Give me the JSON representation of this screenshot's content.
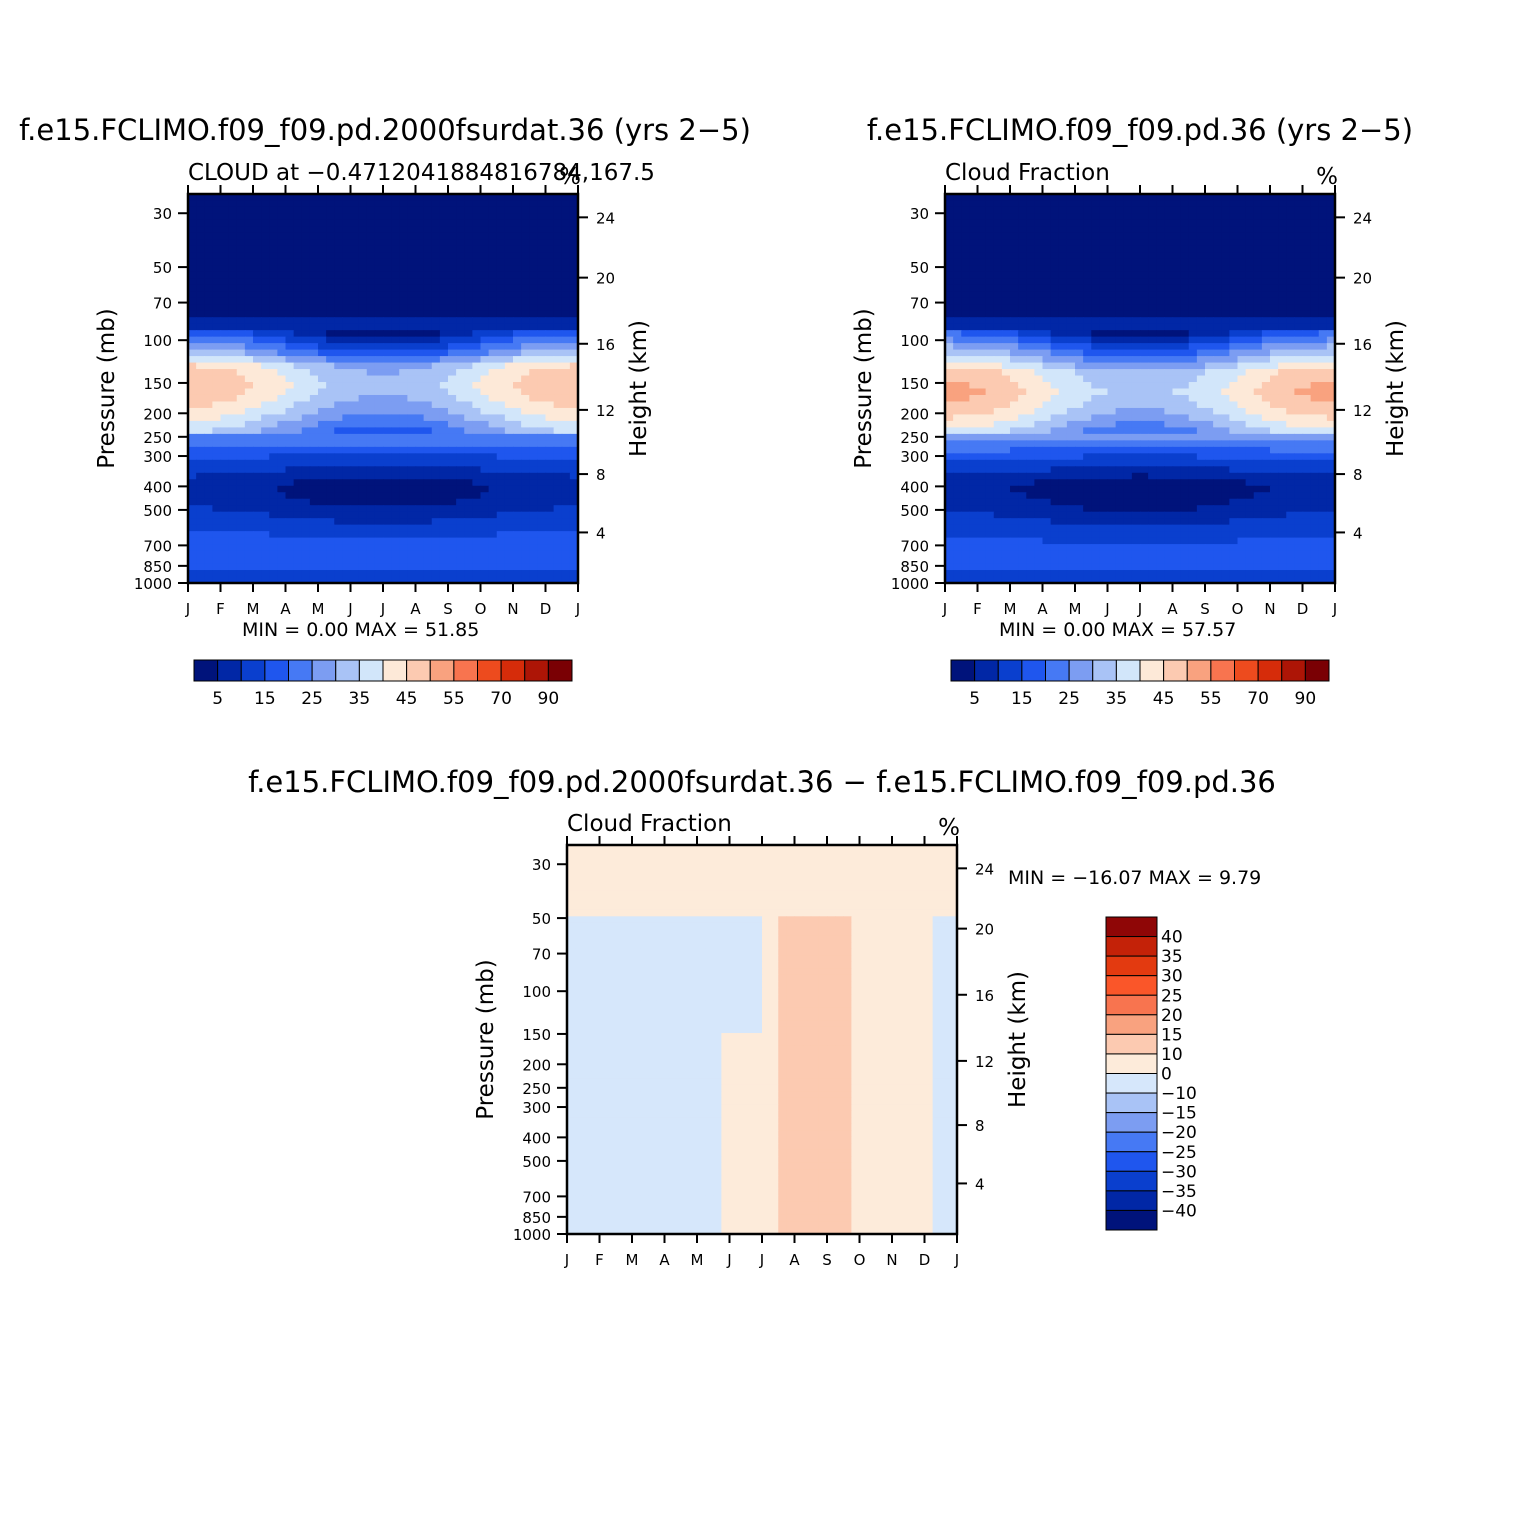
{
  "chart_data": [
    {
      "type": "heatmap",
      "title": "f.e15.FCLIMO.f09_f09.pd.2000fsurdat.36 (yrs 2−5)",
      "subtitle": "CLOUD at −0.4712041884816784,167.5",
      "units": "%",
      "xlabel": "",
      "ylabel": "Pressure (mb)",
      "y2label": "Height (km)",
      "x_ticks": [
        "J",
        "F",
        "M",
        "A",
        "M",
        "J",
        "J",
        "A",
        "S",
        "O",
        "N",
        "D",
        "J"
      ],
      "y_ticks": [
        "30",
        "50",
        "70",
        "100",
        "150",
        "200",
        "250",
        "300",
        "400",
        "500",
        "700",
        "850",
        "1000"
      ],
      "y_tick_values": [
        30,
        50,
        70,
        100,
        150,
        200,
        250,
        300,
        400,
        500,
        700,
        850,
        1000
      ],
      "y2_ticks": [
        "24",
        "20",
        "16",
        "12",
        "8",
        "4"
      ],
      "ylim": [
        1000,
        25
      ],
      "stats": "MIN =    0.00  MAX =   51.85",
      "colorbar_labels": [
        "5",
        "15",
        "25",
        "35",
        "45",
        "55",
        "70",
        "90"
      ],
      "levels": [
        5,
        10,
        15,
        20,
        25,
        30,
        35,
        40,
        45,
        50,
        55,
        60,
        70,
        80,
        90
      ],
      "profile": [
        {
          "p": 25,
          "v": 0
        },
        {
          "p": 70,
          "v": 0.5
        },
        {
          "p": 90,
          "v": 8
        },
        {
          "p": 110,
          "v": 22
        },
        {
          "p": 130,
          "v": 38
        },
        {
          "p": 155,
          "v": 41
        },
        {
          "p": 190,
          "v": 36
        },
        {
          "p": 240,
          "v": 26
        },
        {
          "p": 300,
          "v": 17
        },
        {
          "p": 400,
          "v": 10
        },
        {
          "p": 500,
          "v": 13
        },
        {
          "p": 650,
          "v": 17
        },
        {
          "p": 850,
          "v": 19
        },
        {
          "p": 960,
          "v": 12
        },
        {
          "p": 1000,
          "v": 6
        }
      ]
    },
    {
      "type": "heatmap",
      "title": "f.e15.FCLIMO.f09_f09.pd.36 (yrs 2−5)",
      "subtitle": "Cloud Fraction",
      "units": "%",
      "xlabel": "",
      "ylabel": "Pressure (mb)",
      "y2label": "Height (km)",
      "x_ticks": [
        "J",
        "F",
        "M",
        "A",
        "M",
        "J",
        "J",
        "A",
        "S",
        "O",
        "N",
        "D",
        "J"
      ],
      "y_ticks": [
        "30",
        "50",
        "70",
        "100",
        "150",
        "200",
        "250",
        "300",
        "400",
        "500",
        "700",
        "850",
        "1000"
      ],
      "y_tick_values": [
        30,
        50,
        70,
        100,
        150,
        200,
        250,
        300,
        400,
        500,
        700,
        850,
        1000
      ],
      "y2_ticks": [
        "24",
        "20",
        "16",
        "12",
        "8",
        "4"
      ],
      "ylim": [
        1000,
        25
      ],
      "stats": "MIN =    0.00  MAX =   57.57",
      "colorbar_labels": [
        "5",
        "15",
        "25",
        "35",
        "45",
        "55",
        "70",
        "90"
      ],
      "levels": [
        5,
        10,
        15,
        20,
        25,
        30,
        35,
        40,
        45,
        50,
        55,
        60,
        70,
        80,
        90
      ],
      "profile": [
        {
          "p": 25,
          "v": 0
        },
        {
          "p": 70,
          "v": 0.5
        },
        {
          "p": 90,
          "v": 8
        },
        {
          "p": 110,
          "v": 24
        },
        {
          "p": 135,
          "v": 39
        },
        {
          "p": 165,
          "v": 43
        },
        {
          "p": 200,
          "v": 38
        },
        {
          "p": 250,
          "v": 28
        },
        {
          "p": 300,
          "v": 18
        },
        {
          "p": 400,
          "v": 9
        },
        {
          "p": 500,
          "v": 12
        },
        {
          "p": 650,
          "v": 16
        },
        {
          "p": 850,
          "v": 18
        },
        {
          "p": 960,
          "v": 12
        },
        {
          "p": 1000,
          "v": 6
        }
      ]
    },
    {
      "type": "heatmap",
      "title": "f.e15.FCLIMO.f09_f09.pd.2000fsurdat.36 − f.e15.FCLIMO.f09_f09.pd.36",
      "subtitle": "Cloud Fraction",
      "units": "%",
      "xlabel": "",
      "ylabel": "Pressure (mb)",
      "y2label": "Height (km)",
      "x_ticks": [
        "J",
        "F",
        "M",
        "A",
        "M",
        "J",
        "J",
        "A",
        "S",
        "O",
        "N",
        "D",
        "J"
      ],
      "y_ticks": [
        "30",
        "50",
        "70",
        "100",
        "150",
        "200",
        "250",
        "300",
        "400",
        "500",
        "700",
        "850",
        "1000"
      ],
      "y_tick_values": [
        30,
        50,
        70,
        100,
        150,
        200,
        250,
        300,
        400,
        500,
        700,
        850,
        1000
      ],
      "y2_ticks": [
        "24",
        "20",
        "16",
        "12",
        "8",
        "4"
      ],
      "ylim": [
        1000,
        25
      ],
      "stats": "MIN = −16.07  MAX =    9.79",
      "colorbar_labels": [
        "40",
        "35",
        "30",
        "25",
        "20",
        "15",
        "10",
        "0",
        "−10",
        "−15",
        "−20",
        "−25",
        "−30",
        "−35",
        "−40"
      ],
      "levels": [
        -40,
        -35,
        -30,
        -25,
        -20,
        -15,
        -10,
        0,
        10,
        15,
        20,
        25,
        30,
        35,
        40
      ]
    }
  ],
  "palette": {
    "blues_to_reds": [
      "#00137b",
      "#0127a6",
      "#0a3fce",
      "#1f56ee",
      "#4679f4",
      "#7c9df2",
      "#a9c3f6",
      "#d2e6fa",
      "#fde9d8",
      "#fccab1",
      "#f9a27f",
      "#f8744f",
      "#ed4b1e",
      "#d62c0a",
      "#ad1506",
      "#7a0004"
    ],
    "diff_colors": [
      "#00137b",
      "#0127a6",
      "#0a3fce",
      "#1f56ee",
      "#4679f4",
      "#7c9df2",
      "#a9c3f6",
      "#d6e7fb",
      "#fdebda",
      "#fccab1",
      "#f9a27f",
      "#f8744f",
      "#fa5629",
      "#e33a10",
      "#c42208",
      "#8f0606"
    ]
  }
}
